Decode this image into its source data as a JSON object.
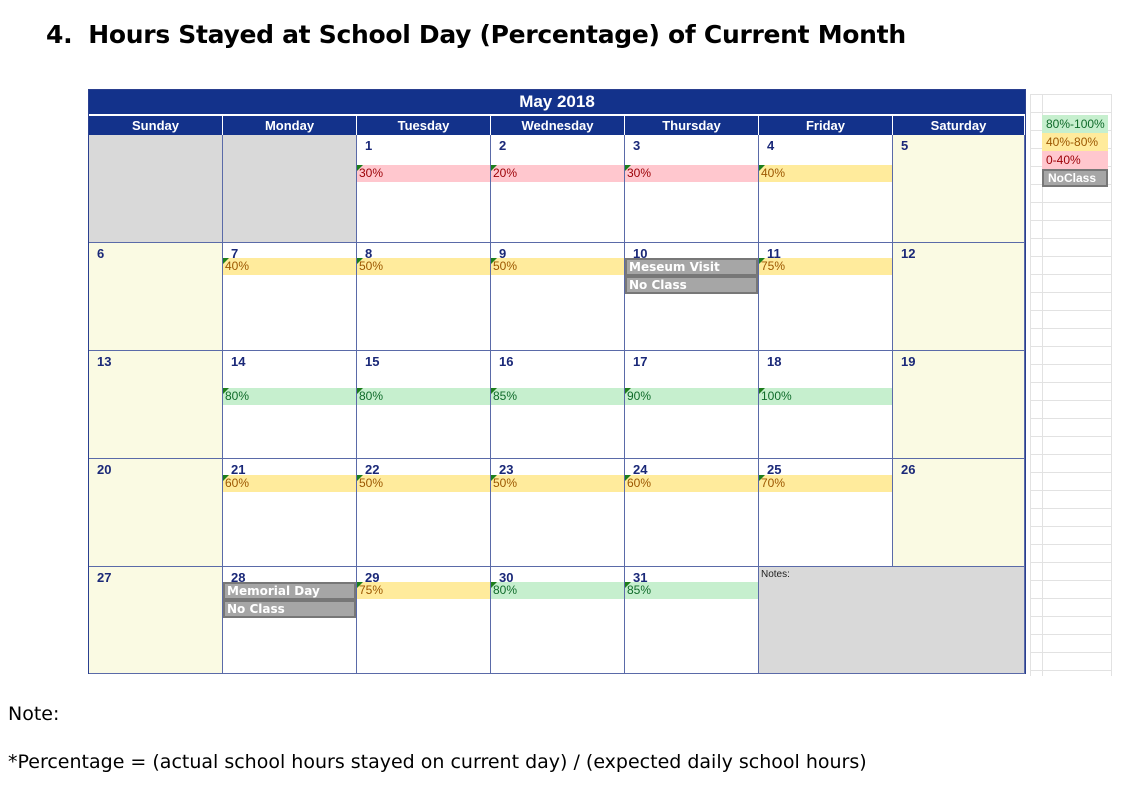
{
  "heading": {
    "number": "4.",
    "title": "Hours Stayed at School Day (Percentage) of Current Month"
  },
  "calendar": {
    "month_title": "May 2018",
    "weekdays": [
      "Sunday",
      "Monday",
      "Tuesday",
      "Wednesday",
      "Thursday",
      "Friday",
      "Saturday"
    ],
    "notes_label": "Notes:",
    "weeks": [
      [
        {
          "type": "blank"
        },
        {
          "type": "blank"
        },
        {
          "day": "1",
          "entries": [
            {
              "text": "30%",
              "level": "low"
            }
          ]
        },
        {
          "day": "2",
          "entries": [
            {
              "text": "20%",
              "level": "low"
            }
          ]
        },
        {
          "day": "3",
          "entries": [
            {
              "text": "30%",
              "level": "low"
            }
          ]
        },
        {
          "day": "4",
          "entries": [
            {
              "text": "40%",
              "level": "mid"
            }
          ]
        },
        {
          "day": "5",
          "type": "weekend"
        }
      ],
      [
        {
          "day": "6",
          "type": "weekend"
        },
        {
          "day": "7",
          "entries": [
            {
              "text": "40%",
              "level": "mid"
            }
          ]
        },
        {
          "day": "8",
          "entries": [
            {
              "text": "50%",
              "level": "mid"
            }
          ]
        },
        {
          "day": "9",
          "entries": [
            {
              "text": "50%",
              "level": "mid"
            }
          ]
        },
        {
          "day": "10",
          "entries": [
            {
              "text": "Meseum Visit",
              "level": "noclass"
            },
            {
              "text": "No Class",
              "level": "noclass"
            }
          ]
        },
        {
          "day": "11",
          "entries": [
            {
              "text": "75%",
              "level": "mid"
            }
          ]
        },
        {
          "day": "12",
          "type": "weekend"
        }
      ],
      [
        {
          "day": "13",
          "type": "weekend"
        },
        {
          "day": "14",
          "entries": [
            {
              "text": "80%",
              "level": "high"
            }
          ]
        },
        {
          "day": "15",
          "entries": [
            {
              "text": "80%",
              "level": "high"
            }
          ]
        },
        {
          "day": "16",
          "entries": [
            {
              "text": "85%",
              "level": "high"
            }
          ]
        },
        {
          "day": "17",
          "entries": [
            {
              "text": "90%",
              "level": "high"
            }
          ]
        },
        {
          "day": "18",
          "entries": [
            {
              "text": "100%",
              "level": "high"
            }
          ]
        },
        {
          "day": "19",
          "type": "weekend"
        }
      ],
      [
        {
          "day": "20",
          "type": "weekend"
        },
        {
          "day": "21",
          "entries": [
            {
              "text": "60%",
              "level": "mid"
            }
          ]
        },
        {
          "day": "22",
          "entries": [
            {
              "text": "50%",
              "level": "mid"
            }
          ]
        },
        {
          "day": "23",
          "entries": [
            {
              "text": "50%",
              "level": "mid"
            }
          ]
        },
        {
          "day": "24",
          "entries": [
            {
              "text": "60%",
              "level": "mid"
            }
          ]
        },
        {
          "day": "25",
          "entries": [
            {
              "text": "70%",
              "level": "mid"
            }
          ]
        },
        {
          "day": "26",
          "type": "weekend"
        }
      ],
      [
        {
          "day": "27",
          "type": "weekend"
        },
        {
          "day": "28",
          "entries": [
            {
              "text": "Memorial Day",
              "level": "noclass"
            },
            {
              "text": "No Class",
              "level": "noclass"
            }
          ]
        },
        {
          "day": "29",
          "entries": [
            {
              "text": "75%",
              "level": "mid"
            }
          ]
        },
        {
          "day": "30",
          "entries": [
            {
              "text": "80%",
              "level": "high"
            }
          ]
        },
        {
          "day": "31",
          "entries": [
            {
              "text": "85%",
              "level": "high"
            }
          ]
        },
        {
          "type": "notes"
        }
      ]
    ]
  },
  "legend": [
    {
      "label": "80%-100%",
      "level": "high"
    },
    {
      "label": "40%-80%",
      "level": "mid"
    },
    {
      "label": "0-40%",
      "level": "low"
    },
    {
      "label": "NoClass",
      "level": "noclass"
    }
  ],
  "colors": {
    "header_blue": "#13328b",
    "high": "#c6efce",
    "mid": "#ffeb9c",
    "low": "#ffc7ce",
    "noclass": "#a6a6a6",
    "weekend": "#fafae3",
    "blank": "#d9d9d9"
  },
  "note": {
    "title": "Note:",
    "text": "*Percentage = (actual school hours stayed on current day) / (expected daily school hours)"
  }
}
